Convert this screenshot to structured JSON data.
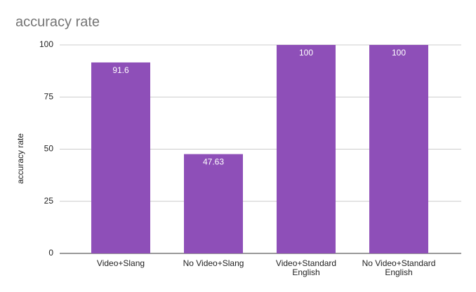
{
  "chart_data": {
    "type": "bar",
    "title": "accuracy rate",
    "y_label": "accuracy rate",
    "categories": [
      "Video+Slang",
      "No Video+Slang",
      "Video+Standard English",
      "No Video+Standard English"
    ],
    "values": [
      91.6,
      47.63,
      100,
      100
    ],
    "color": "#8e4fb8",
    "ylim": [
      0,
      100
    ],
    "yticks": [
      0,
      25,
      50,
      75,
      100
    ],
    "grid": true
  }
}
